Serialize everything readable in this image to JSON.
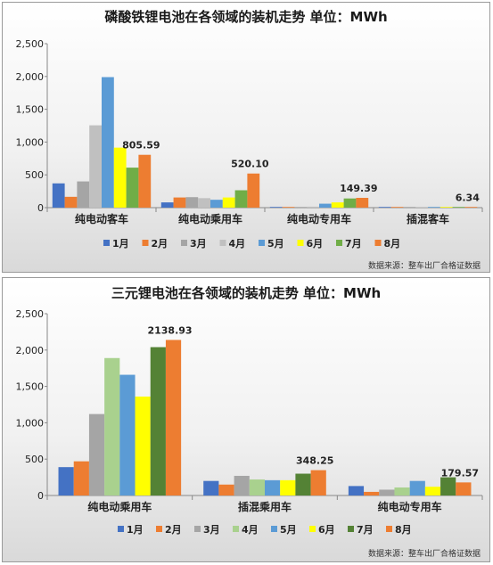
{
  "chart_data": [
    {
      "type": "bar",
      "title": "磷酸铁锂电池在各领域的装机走势 单位：MWh",
      "categories": [
        "纯电动客车",
        "纯电动乘用车",
        "纯电动专用车",
        "插混客车"
      ],
      "series": [
        {
          "name": "1月",
          "color": "#4472C4",
          "values": [
            370,
            80,
            5,
            2
          ]
        },
        {
          "name": "2月",
          "color": "#ED7D31",
          "values": [
            165,
            155,
            5,
            2
          ]
        },
        {
          "name": "3月",
          "color": "#A5A5A5",
          "values": [
            400,
            160,
            10,
            3
          ]
        },
        {
          "name": "4月",
          "color": "#C0C0C0",
          "values": [
            1255,
            145,
            15,
            3
          ]
        },
        {
          "name": "5月",
          "color": "#5B9BD5",
          "values": [
            1990,
            120,
            60,
            5
          ]
        },
        {
          "name": "6月",
          "color": "#FFFF00",
          "values": [
            915,
            155,
            80,
            4
          ]
        },
        {
          "name": "7月",
          "color": "#70AD47",
          "values": [
            610,
            265,
            140,
            5
          ]
        },
        {
          "name": "8月",
          "color": "#ED7D31",
          "values": [
            805.59,
            520.1,
            149.39,
            6.34
          ]
        }
      ],
      "data_labels": [
        "805.59",
        "520.10",
        "149.39",
        "6.34"
      ],
      "ylim": [
        0,
        2500
      ],
      "yticks": [
        "0",
        "500",
        "1,000",
        "1,500",
        "2,000",
        "2,500"
      ],
      "grid": false,
      "legend_position": "bottom",
      "source": "数据来源：整车出厂合格证数据"
    },
    {
      "type": "bar",
      "title": "三元锂电池在各领域的装机走势 单位：MWh",
      "categories": [
        "纯电动乘用车",
        "插混乘用车",
        "纯电动专用车"
      ],
      "series": [
        {
          "name": "1月",
          "color": "#4472C4",
          "values": [
            390,
            200,
            130
          ]
        },
        {
          "name": "2月",
          "color": "#ED7D31",
          "values": [
            470,
            150,
            50
          ]
        },
        {
          "name": "3月",
          "color": "#A5A5A5",
          "values": [
            1120,
            270,
            80
          ]
        },
        {
          "name": "4月",
          "color": "#A9D18E",
          "values": [
            1890,
            220,
            110
          ]
        },
        {
          "name": "5月",
          "color": "#5B9BD5",
          "values": [
            1660,
            210,
            200
          ]
        },
        {
          "name": "6月",
          "color": "#FFFF00",
          "values": [
            1360,
            210,
            120
          ]
        },
        {
          "name": "7月",
          "color": "#548235",
          "values": [
            2040,
            300,
            250
          ]
        },
        {
          "name": "8月",
          "color": "#ED7D31",
          "values": [
            2138.93,
            348.25,
            179.57
          ]
        }
      ],
      "data_labels": [
        "2138.93",
        "348.25",
        "179.57"
      ],
      "ylim": [
        0,
        2500
      ],
      "yticks": [
        "0",
        "500",
        "1,000",
        "1,500",
        "2,000",
        "2,500"
      ],
      "grid": false,
      "legend_position": "bottom",
      "source": "数据来源：整车出厂合格证数据"
    }
  ]
}
